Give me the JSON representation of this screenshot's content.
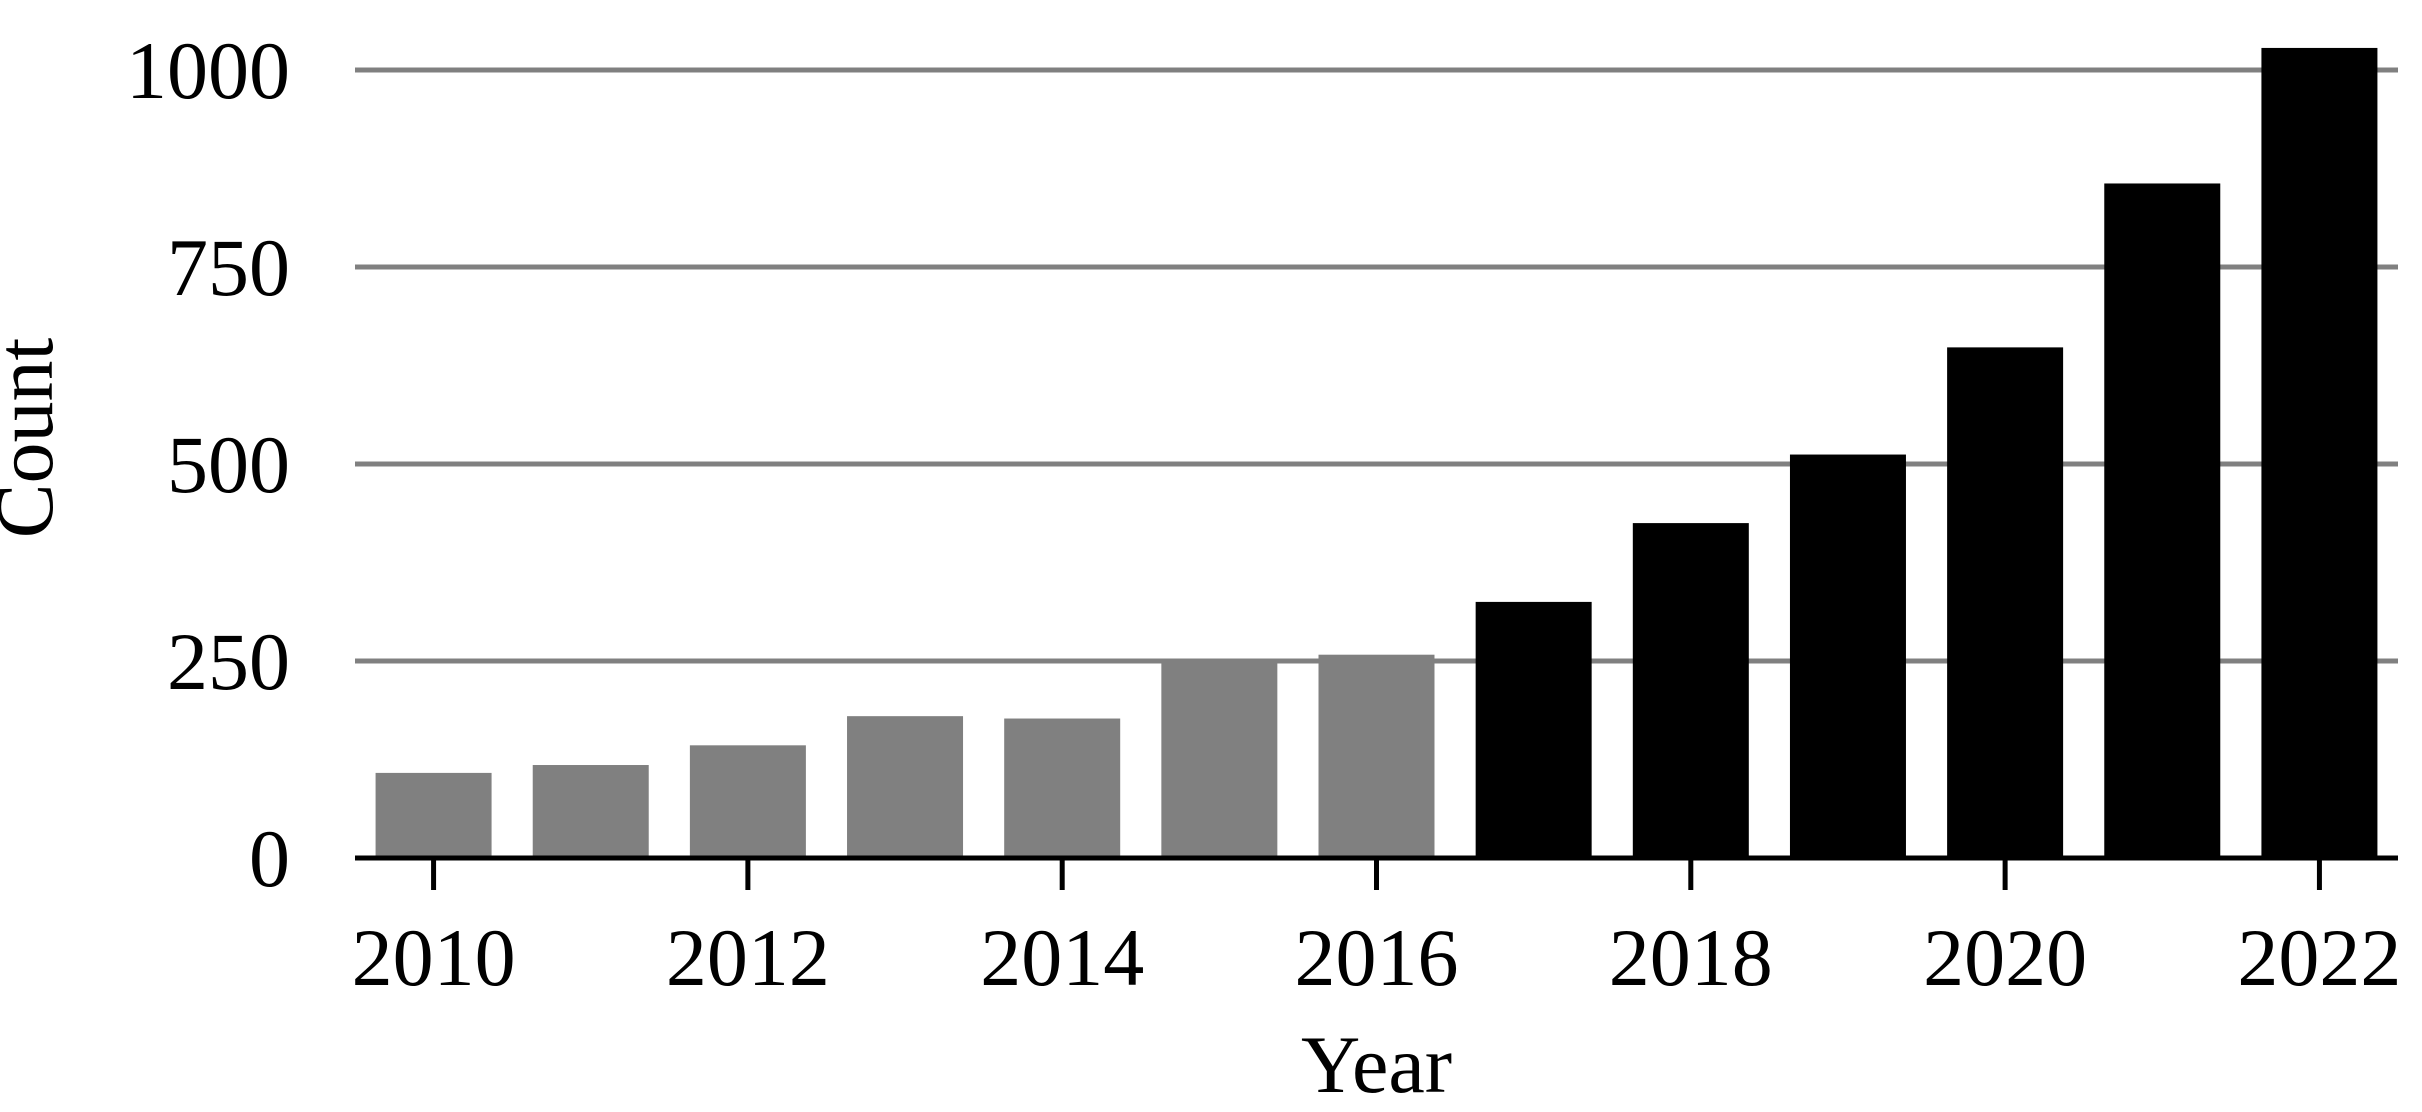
{
  "chart_data": {
    "type": "bar",
    "title": "",
    "xlabel": "Year",
    "ylabel": "Count",
    "x": [
      2010,
      2011,
      2012,
      2013,
      2014,
      2015,
      2016,
      2017,
      2018,
      2019,
      2020,
      2021,
      2022
    ],
    "values": [
      108,
      118,
      143,
      180,
      177,
      250,
      258,
      325,
      425,
      512,
      648,
      856,
      1028
    ],
    "ylim": [
      0,
      1000
    ],
    "yticks": [
      0,
      250,
      500,
      750,
      1000
    ],
    "xticks": [
      2010,
      2012,
      2014,
      2016,
      2018,
      2020,
      2022
    ],
    "grid": "horizontal",
    "bar_colors": {
      "through_2016": "#808080",
      "from_2017": "#000000"
    },
    "gridline_color": "#808080",
    "legend": "none"
  }
}
